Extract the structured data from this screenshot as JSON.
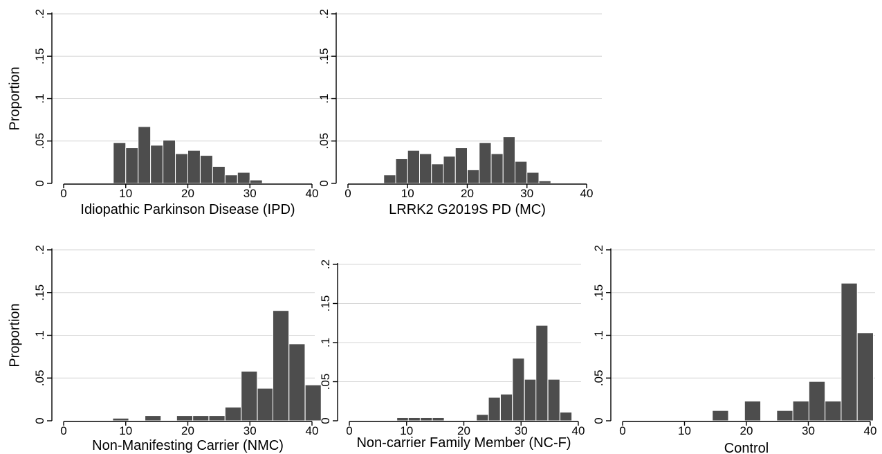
{
  "colors": {
    "bar": "#4d4d4d",
    "grid": "#d6d6d6",
    "axis": "#000000"
  },
  "chart_data": [
    {
      "type": "bar",
      "xlabel": "Idiopathic Parkinson Disease (IPD)",
      "ylabel": "Proportion",
      "xlim": [
        0,
        40
      ],
      "ylim": [
        0,
        0.2
      ],
      "xticks": [
        0,
        10,
        20,
        30,
        40
      ],
      "yticks": [
        0,
        0.05,
        0.1,
        0.15,
        0.2
      ],
      "ytick_labels": [
        "0",
        ".05",
        ".1",
        ".15",
        ".2"
      ],
      "bin_width": 2,
      "bins": [
        {
          "x": 8,
          "y": 0.048
        },
        {
          "x": 10,
          "y": 0.042
        },
        {
          "x": 12,
          "y": 0.067
        },
        {
          "x": 14,
          "y": 0.045
        },
        {
          "x": 16,
          "y": 0.051
        },
        {
          "x": 18,
          "y": 0.035
        },
        {
          "x": 20,
          "y": 0.039
        },
        {
          "x": 22,
          "y": 0.033
        },
        {
          "x": 24,
          "y": 0.02
        },
        {
          "x": 26,
          "y": 0.01
        },
        {
          "x": 28,
          "y": 0.013
        },
        {
          "x": 30,
          "y": 0.004
        }
      ],
      "grid": true
    },
    {
      "type": "bar",
      "xlabel": "LRRK2 G2019S PD (MC)",
      "ylabel": "",
      "xlim": [
        0,
        40
      ],
      "ylim": [
        0,
        0.2
      ],
      "xticks": [
        0,
        10,
        20,
        30,
        40
      ],
      "yticks": [
        0,
        0.05,
        0.1,
        0.15,
        0.2
      ],
      "ytick_labels": [
        "0",
        ".05",
        ".1",
        ".15",
        ".2"
      ],
      "bin_width": 2,
      "bins": [
        {
          "x": 6,
          "y": 0.01
        },
        {
          "x": 8,
          "y": 0.029
        },
        {
          "x": 10,
          "y": 0.039
        },
        {
          "x": 12,
          "y": 0.035
        },
        {
          "x": 14,
          "y": 0.023
        },
        {
          "x": 16,
          "y": 0.032
        },
        {
          "x": 18,
          "y": 0.042
        },
        {
          "x": 20,
          "y": 0.016
        },
        {
          "x": 22,
          "y": 0.048
        },
        {
          "x": 24,
          "y": 0.035
        },
        {
          "x": 26,
          "y": 0.055
        },
        {
          "x": 28,
          "y": 0.026
        },
        {
          "x": 30,
          "y": 0.013
        },
        {
          "x": 32,
          "y": 0.003
        }
      ],
      "grid": true
    },
    {
      "type": "bar",
      "xlabel": "Non-Manifesting Carrier (NMC)",
      "ylabel": "Proportion",
      "xlim": [
        0,
        40
      ],
      "ylim": [
        0,
        0.2
      ],
      "xticks": [
        0,
        10,
        20,
        30,
        40
      ],
      "yticks": [
        0,
        0.05,
        0.1,
        0.15,
        0.2
      ],
      "ytick_labels": [
        "0",
        ".05",
        ".1",
        ".15",
        ".2"
      ],
      "bin_width": 2.58,
      "bins": [
        {
          "x": 7.9,
          "y": 0.003
        },
        {
          "x": 13.1,
          "y": 0.006
        },
        {
          "x": 18.2,
          "y": 0.006
        },
        {
          "x": 20.8,
          "y": 0.006
        },
        {
          "x": 23.4,
          "y": 0.006
        },
        {
          "x": 26.0,
          "y": 0.016
        },
        {
          "x": 28.6,
          "y": 0.058
        },
        {
          "x": 31.2,
          "y": 0.038
        },
        {
          "x": 33.7,
          "y": 0.129
        },
        {
          "x": 36.3,
          "y": 0.09
        },
        {
          "x": 38.9,
          "y": 0.042
        }
      ],
      "grid": true
    },
    {
      "type": "bar",
      "xlabel": "Non-carrier Family Member (NC-F)",
      "ylabel": "",
      "xlim": [
        0,
        40
      ],
      "ylim": [
        0,
        0.2
      ],
      "xticks": [
        0,
        10,
        20,
        30,
        40
      ],
      "yticks": [
        0,
        0.05,
        0.1,
        0.15,
        0.2
      ],
      "ytick_labels": [
        "0",
        ".05",
        ".1",
        ".15",
        ".2"
      ],
      "bin_width": 2.07,
      "bins": [
        {
          "x": 8.3,
          "y": 0.004
        },
        {
          "x": 10.3,
          "y": 0.004
        },
        {
          "x": 12.4,
          "y": 0.004
        },
        {
          "x": 14.5,
          "y": 0.004
        },
        {
          "x": 22.2,
          "y": 0.008
        },
        {
          "x": 24.3,
          "y": 0.03
        },
        {
          "x": 26.4,
          "y": 0.034
        },
        {
          "x": 28.5,
          "y": 0.08
        },
        {
          "x": 30.6,
          "y": 0.053
        },
        {
          "x": 32.6,
          "y": 0.122
        },
        {
          "x": 34.7,
          "y": 0.053
        },
        {
          "x": 36.8,
          "y": 0.011
        }
      ],
      "grid": true
    },
    {
      "type": "bar",
      "xlabel": "Control",
      "ylabel": "",
      "xlim": [
        0,
        40
      ],
      "ylim": [
        0,
        0.2
      ],
      "xticks": [
        0,
        10,
        20,
        30,
        40
      ],
      "yticks": [
        0,
        0.05,
        0.1,
        0.15,
        0.2
      ],
      "ytick_labels": [
        "0",
        ".05",
        ".1",
        ".15",
        ".2"
      ],
      "bin_width": 2.6,
      "bins": [
        {
          "x": 14.5,
          "y": 0.012
        },
        {
          "x": 19.7,
          "y": 0.023
        },
        {
          "x": 24.9,
          "y": 0.012
        },
        {
          "x": 27.5,
          "y": 0.023
        },
        {
          "x": 30.1,
          "y": 0.046
        },
        {
          "x": 32.7,
          "y": 0.023
        },
        {
          "x": 35.3,
          "y": 0.161
        },
        {
          "x": 37.9,
          "y": 0.103
        }
      ],
      "grid": true
    }
  ]
}
